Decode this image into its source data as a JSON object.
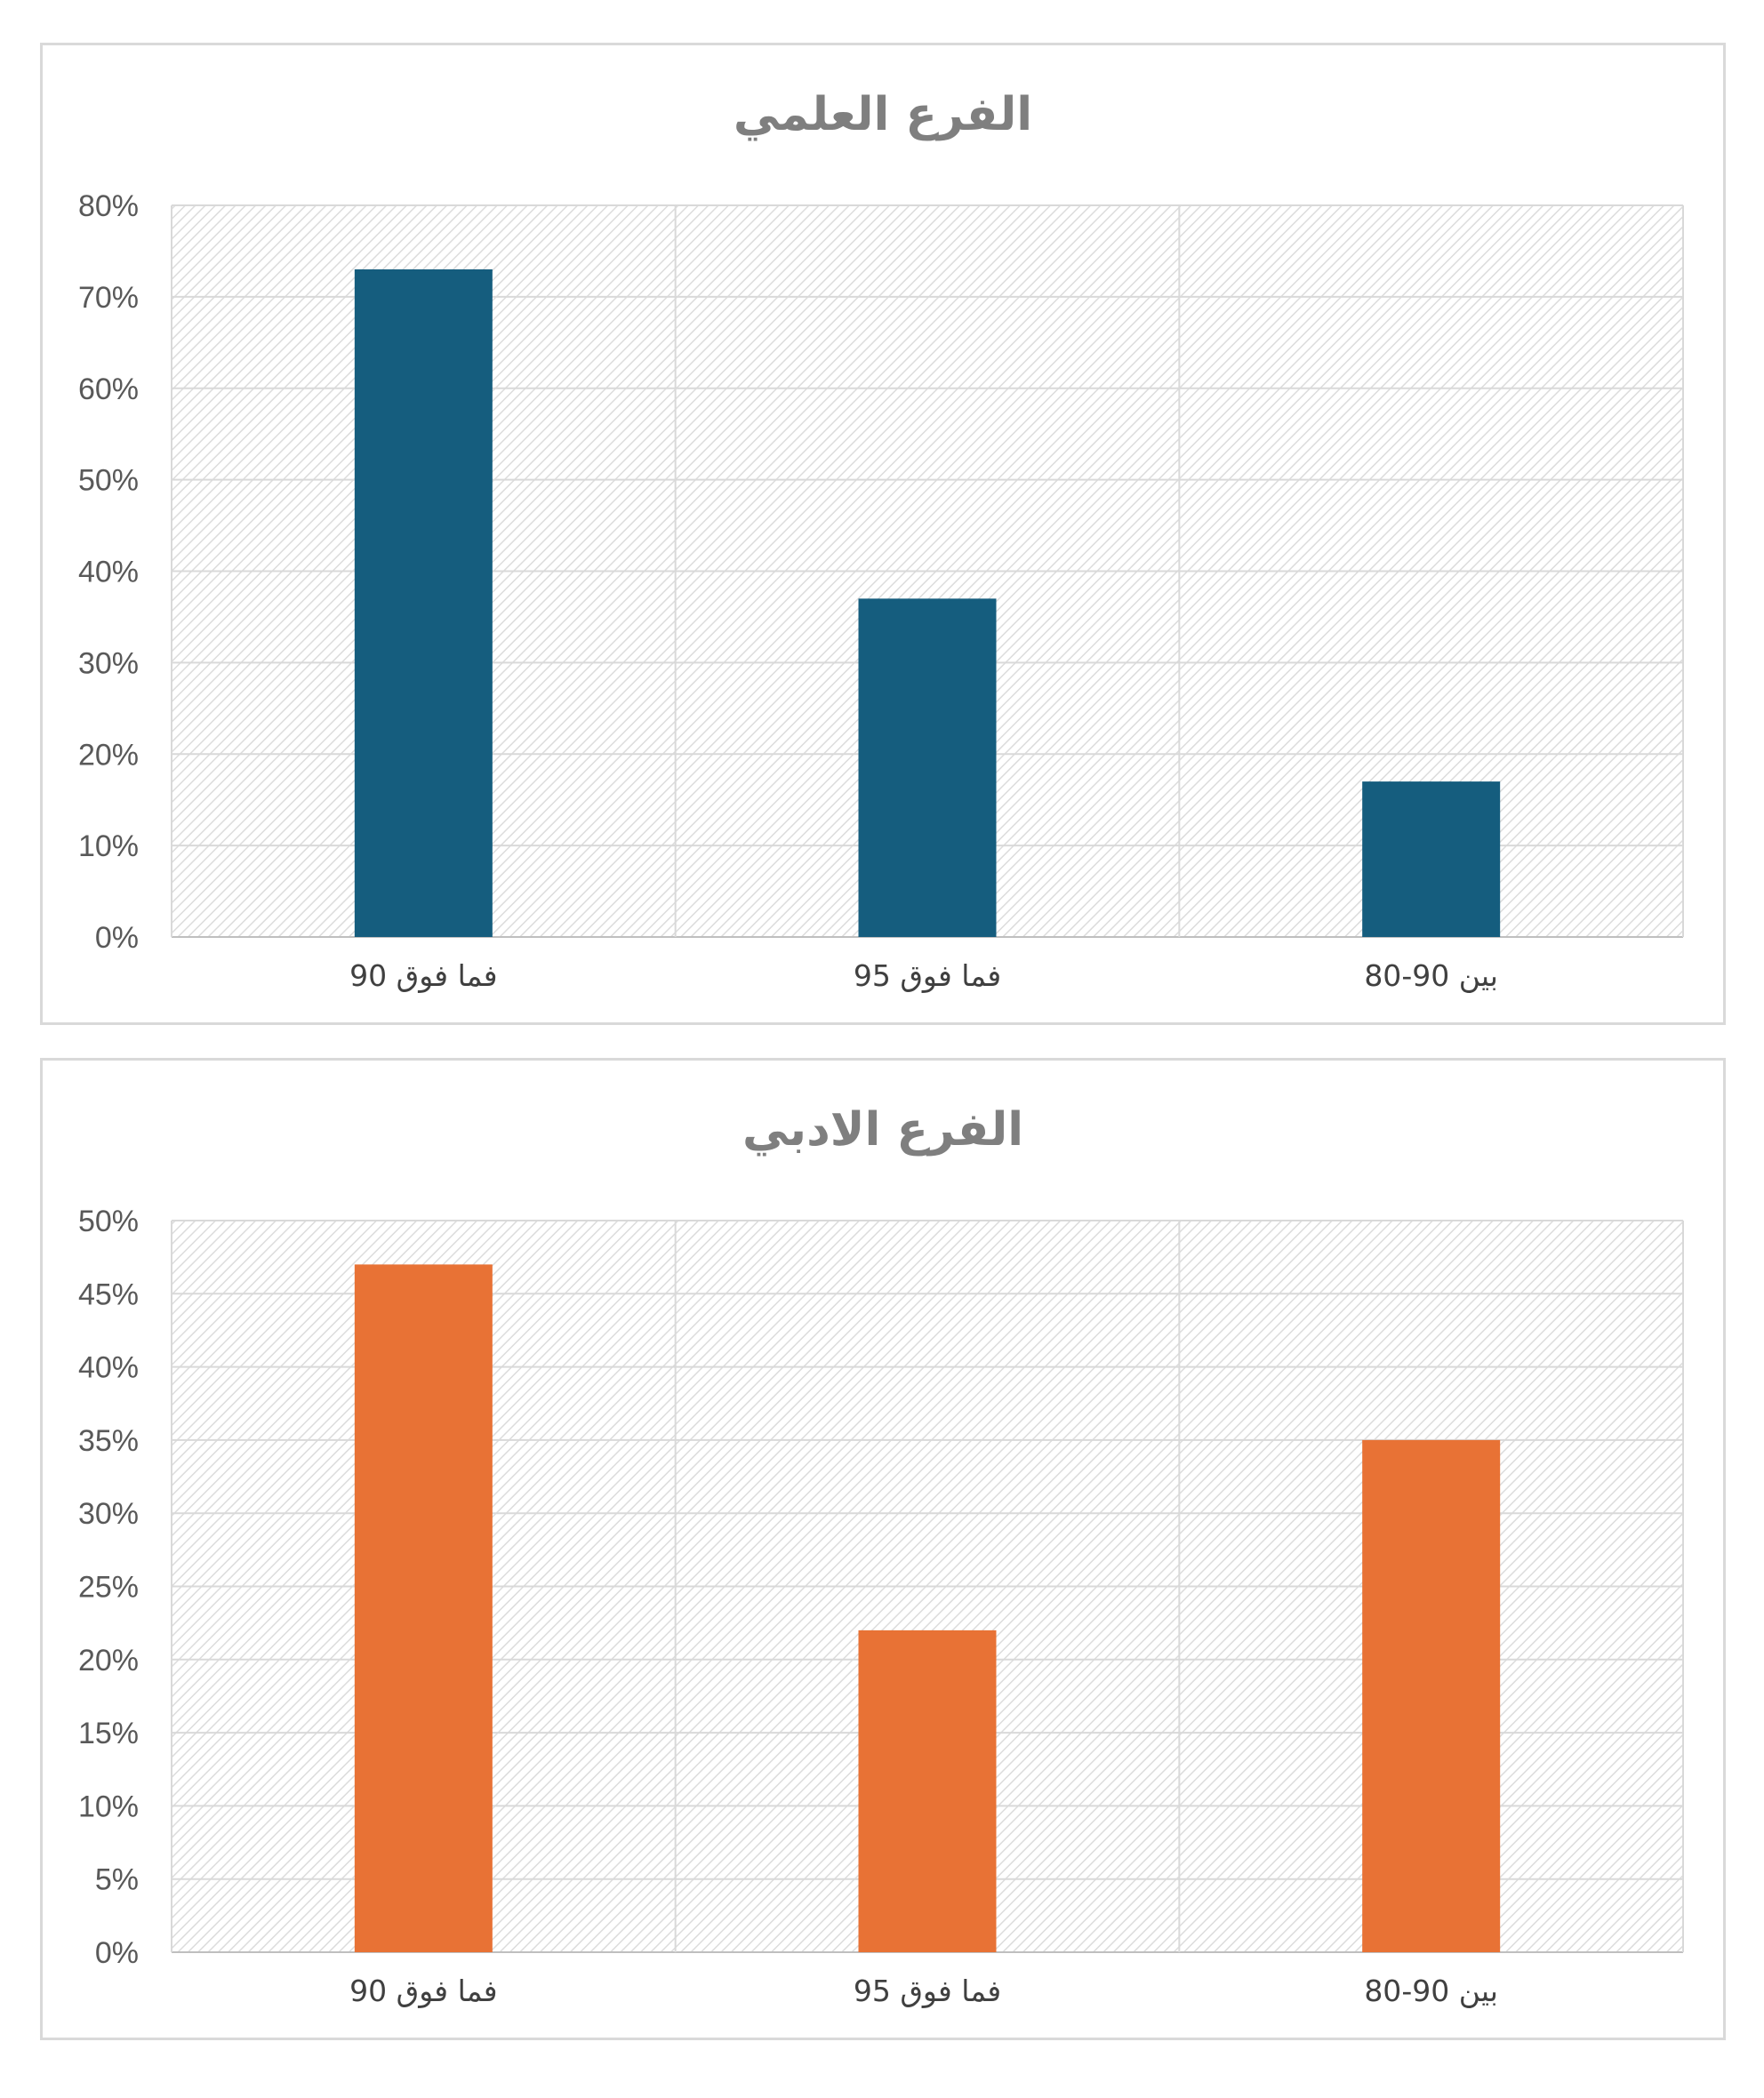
{
  "chart_data": [
    {
      "type": "bar",
      "title": "الفرع العلمي",
      "categories": [
        "90 فما فوق",
        "95 فما فوق",
        "بين 90-80"
      ],
      "values": [
        73,
        37,
        17
      ],
      "value_format": "percent",
      "ylim": [
        0,
        80
      ],
      "yticks": [
        "0%",
        "10%",
        "20%",
        "30%",
        "40%",
        "50%",
        "60%",
        "70%",
        "80%"
      ],
      "color": "#155d7e",
      "grid": true,
      "plot_background": "diagonal-hatch",
      "legend": "none"
    },
    {
      "type": "bar",
      "title": "الفرع الادبي",
      "categories": [
        "90 فما فوق",
        "95 فما فوق",
        "بين 90-80"
      ],
      "values": [
        47,
        22,
        35
      ],
      "value_format": "percent",
      "ylim": [
        0,
        50
      ],
      "yticks": [
        "0%",
        "5%",
        "10%",
        "15%",
        "20%",
        "25%",
        "30%",
        "35%",
        "40%",
        "45%",
        "50%"
      ],
      "color": "#e87235",
      "grid": true,
      "plot_background": "diagonal-hatch",
      "legend": "none"
    }
  ]
}
